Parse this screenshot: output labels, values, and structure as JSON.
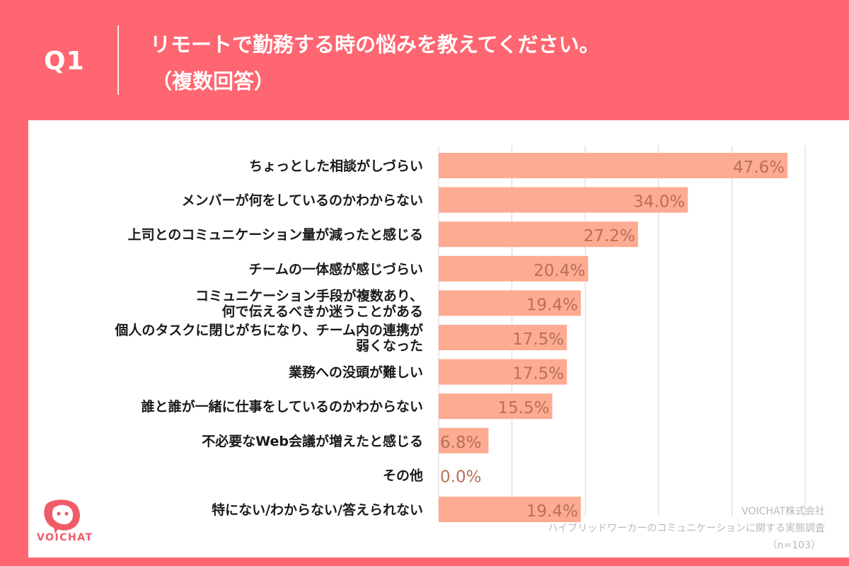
{
  "header": {
    "question": "Q1",
    "title_line1": "リモートで勤務する時の悩みを教えてください。",
    "title_line2": "（複数回答）"
  },
  "chart_data": {
    "type": "bar",
    "orientation": "horizontal",
    "categories": [
      [
        "ちょっとした相談がしづらい"
      ],
      [
        "メンバーが何をしているのかわからない"
      ],
      [
        "上司とのコミュニケーション量が減ったと感じる"
      ],
      [
        "チームの一体感が感じづらい"
      ],
      [
        "コミュニケーション手段が複数あり、",
        "何で伝えるべきか迷うことがある"
      ],
      [
        "個人のタスクに閉じがちになり、チーム内の連携が",
        "弱くなった"
      ],
      [
        "業務への没頭が難しい"
      ],
      [
        "誰と誰が一緒に仕事をしているのかわからない"
      ],
      [
        "不必要なWeb会議が増えたと感じる"
      ],
      [
        "その他"
      ],
      [
        "特にない/わからない/答えられない"
      ]
    ],
    "values": [
      47.6,
      34.0,
      27.2,
      20.4,
      19.4,
      17.5,
      17.5,
      15.5,
      6.8,
      0.0,
      19.4
    ],
    "value_labels": [
      "47.6%",
      "34.0%",
      "27.2%",
      "20.4%",
      "19.4%",
      "17.5%",
      "17.5%",
      "15.5%",
      "6.8%",
      "0.0%",
      "19.4%"
    ],
    "xlim": [
      0,
      50
    ],
    "grid": true,
    "bar_color": "#fdab92",
    "label_color": "#b8705a"
  },
  "brand": {
    "logo_text": "VOICHAT"
  },
  "source": {
    "line1": "VOICHAT株式会社",
    "line2": "ハイブリッドワーカーのコミュニケーションに関する実態調査",
    "line3": "（n=103）"
  },
  "colors": {
    "background": "#fe6671",
    "panel": "#ffffff",
    "grid": "#d4d4d4",
    "source_text": "#b8b8b8"
  }
}
